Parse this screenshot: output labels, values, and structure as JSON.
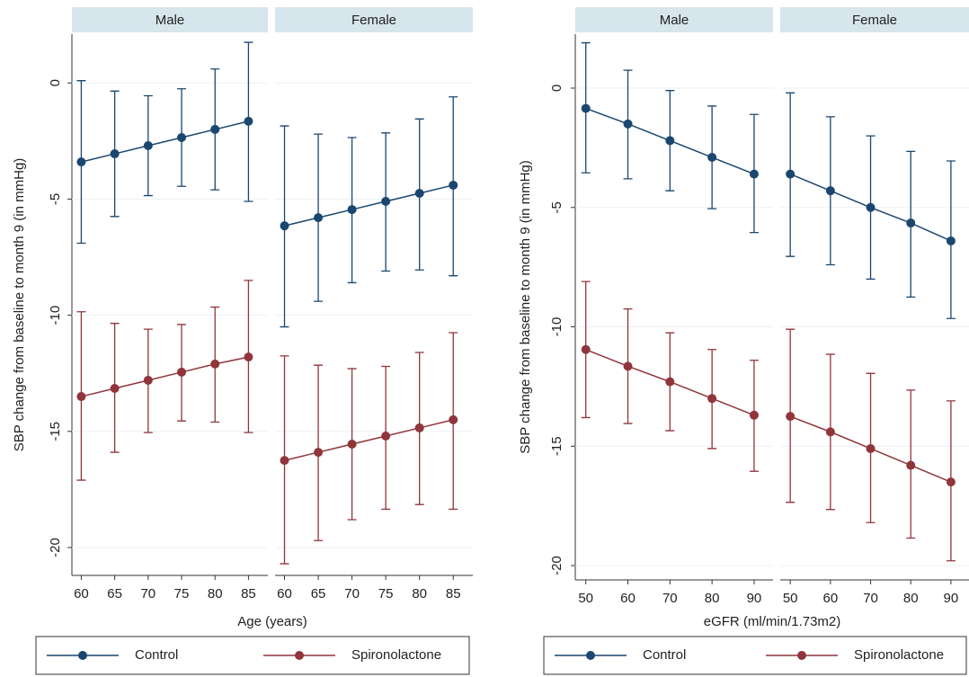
{
  "chart_data": [
    {
      "type": "line",
      "y_label": "SBP change from baseline to month 9 (in mmHg)",
      "x_label": "Age (years)",
      "ylim": [
        -21.2,
        2.1
      ],
      "yticks": [
        0,
        -5,
        -10,
        -15,
        -20
      ],
      "xlim": [
        58.6,
        87.9
      ],
      "xticks": [
        60,
        65,
        70,
        75,
        80,
        85
      ],
      "grid": true,
      "x": [
        60,
        65,
        70,
        75,
        80,
        85
      ],
      "panels": [
        {
          "title": "Male",
          "series": [
            {
              "name": "Control",
              "color": "#1a476f",
              "values": [
                -3.4,
                -3.05,
                -2.7,
                -2.35,
                -2.0,
                -1.65
              ],
              "lower": [
                -6.9,
                -5.75,
                -4.85,
                -4.45,
                -4.6,
                -5.1
              ],
              "upper": [
                0.1,
                -0.35,
                -0.55,
                -0.25,
                0.6,
                1.75
              ]
            },
            {
              "name": "Spironolactone",
              "color": "#90353b",
              "values": [
                -13.5,
                -13.15,
                -12.8,
                -12.45,
                -12.1,
                -11.8
              ],
              "lower": [
                -17.1,
                -15.9,
                -15.05,
                -14.55,
                -14.6,
                -15.05
              ],
              "upper": [
                -9.85,
                -10.35,
                -10.6,
                -10.4,
                -9.65,
                -8.5
              ]
            }
          ]
        },
        {
          "title": "Female",
          "series": [
            {
              "name": "Control",
              "color": "#1a476f",
              "values": [
                -6.15,
                -5.8,
                -5.45,
                -5.1,
                -4.75,
                -4.4
              ],
              "lower": [
                -10.5,
                -9.4,
                -8.6,
                -8.1,
                -8.05,
                -8.3
              ],
              "upper": [
                -1.85,
                -2.2,
                -2.35,
                -2.15,
                -1.55,
                -0.6
              ]
            },
            {
              "name": "Spironolactone",
              "color": "#90353b",
              "values": [
                -16.25,
                -15.9,
                -15.55,
                -15.2,
                -14.85,
                -14.5
              ],
              "lower": [
                -20.7,
                -19.7,
                -18.8,
                -18.35,
                -18.15,
                -18.35
              ],
              "upper": [
                -11.75,
                -12.15,
                -12.3,
                -12.2,
                -11.6,
                -10.75
              ]
            }
          ]
        }
      ]
    },
    {
      "type": "line",
      "y_label": "SBP change from baseline to month 9 (in mmHg)",
      "x_label": "eGFR (ml/min/1.73m2)",
      "ylim": [
        -20.6,
        2.26
      ],
      "yticks": [
        0,
        -5,
        -10,
        -15,
        -20
      ],
      "xlim": [
        47.5,
        94.5
      ],
      "xticks": [
        50,
        60,
        70,
        80,
        90
      ],
      "grid": true,
      "x": [
        50,
        60,
        70,
        80,
        90
      ],
      "panels": [
        {
          "title": "Male",
          "series": [
            {
              "name": "Control",
              "color": "#1a476f",
              "values": [
                -0.85,
                -1.5,
                -2.2,
                -2.9,
                -3.6
              ],
              "lower": [
                -3.55,
                -3.8,
                -4.3,
                -5.05,
                -6.05
              ],
              "upper": [
                1.9,
                0.75,
                -0.1,
                -0.75,
                -1.1
              ]
            },
            {
              "name": "Spironolactone",
              "color": "#90353b",
              "values": [
                -10.95,
                -11.65,
                -12.3,
                -13.0,
                -13.7
              ],
              "lower": [
                -13.8,
                -14.05,
                -14.35,
                -15.1,
                -16.05
              ],
              "upper": [
                -8.1,
                -9.25,
                -10.25,
                -10.95,
                -11.4
              ]
            }
          ]
        },
        {
          "title": "Female",
          "series": [
            {
              "name": "Control",
              "color": "#1a476f",
              "values": [
                -3.6,
                -4.3,
                -5.0,
                -5.65,
                -6.4
              ],
              "lower": [
                -7.05,
                -7.4,
                -8.0,
                -8.75,
                -9.65
              ],
              "upper": [
                -0.2,
                -1.2,
                -2.0,
                -2.65,
                -3.05
              ]
            },
            {
              "name": "Spironolactone",
              "color": "#90353b",
              "values": [
                -13.75,
                -14.4,
                -15.1,
                -15.8,
                -16.5
              ],
              "lower": [
                -17.35,
                -17.65,
                -18.2,
                -18.85,
                -19.8
              ],
              "upper": [
                -10.1,
                -11.15,
                -11.95,
                -12.65,
                -13.1
              ]
            }
          ]
        }
      ]
    }
  ]
}
